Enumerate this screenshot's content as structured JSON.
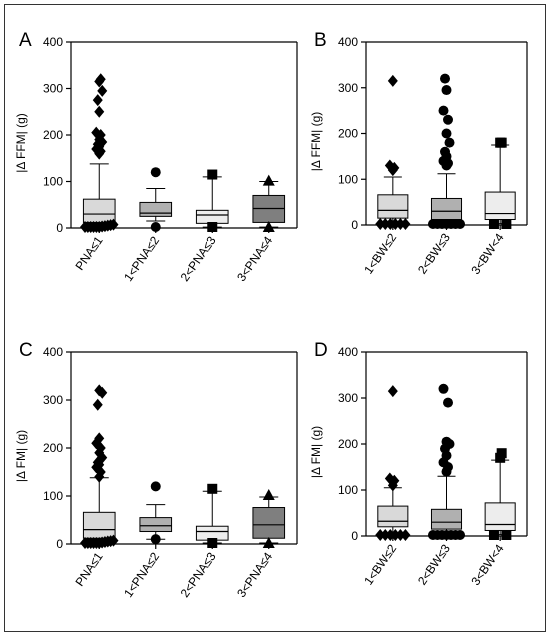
{
  "chart_data": [
    {
      "panel": "A",
      "type": "box",
      "ylabel": "|Δ FFM| (g)",
      "ylim": [
        0,
        400
      ],
      "yticks": [
        0,
        100,
        200,
        300,
        400
      ],
      "categories": [
        "PNA≤1",
        "1<PNA≤2",
        "2<PNA≤3",
        "3<PNA≤4"
      ],
      "boxes": [
        {
          "marker": "diamond",
          "fill": "#d9d9d9",
          "q1": 12,
          "median": 30,
          "q3": 62,
          "whisker_low": 2,
          "whisker_high": 138,
          "outliers": [
            0,
            0,
            0,
            0,
            0,
            0,
            1,
            2,
            3,
            4,
            5,
            160,
            165,
            170,
            175,
            180,
            185,
            190,
            200,
            205,
            250,
            275,
            295,
            315,
            320
          ]
        },
        {
          "marker": "circle",
          "fill": "#b0b0b0",
          "q1": 25,
          "median": 32,
          "q3": 55,
          "whisker_low": 15,
          "whisker_high": 85,
          "outliers": [
            0,
            120
          ]
        },
        {
          "marker": "square",
          "fill": "#ededed",
          "q1": 10,
          "median": 28,
          "q3": 38,
          "whisker_low": 2,
          "whisker_high": 110,
          "outliers": [
            0,
            115
          ]
        },
        {
          "marker": "triangle",
          "fill": "#7f7f7f",
          "q1": 12,
          "median": 42,
          "q3": 70,
          "whisker_low": 2,
          "whisker_high": 100,
          "outliers": [
            0,
            102
          ]
        }
      ]
    },
    {
      "panel": "B",
      "type": "box",
      "ylabel": "|Δ FFM| (g)",
      "ylim": [
        0,
        400
      ],
      "yticks": [
        0,
        100,
        200,
        300,
        400
      ],
      "categories": [
        "1<BW≤2",
        "2<BW≤3",
        "3<BW<4"
      ],
      "boxes": [
        {
          "marker": "diamond",
          "fill": "#d9d9d9",
          "q1": 15,
          "median": 32,
          "q3": 66,
          "whisker_low": 3,
          "whisker_high": 105,
          "outliers": [
            0,
            0,
            0,
            0,
            0,
            0,
            120,
            125,
            130,
            315
          ]
        },
        {
          "marker": "circle",
          "fill": "#b0b0b0",
          "q1": 12,
          "median": 30,
          "q3": 58,
          "whisker_low": 2,
          "whisker_high": 112,
          "outliers": [
            0,
            0,
            0,
            0,
            0,
            0,
            0,
            130,
            135,
            140,
            150,
            160,
            180,
            200,
            230,
            250,
            295,
            320
          ]
        },
        {
          "marker": "square",
          "fill": "#ededed",
          "q1": 12,
          "median": 25,
          "q3": 72,
          "whisker_low": 3,
          "whisker_high": 175,
          "outliers": [
            0,
            0,
            180,
            180
          ]
        }
      ]
    },
    {
      "panel": "C",
      "type": "box",
      "ylabel": "|Δ FM| (g)",
      "ylim": [
        0,
        400
      ],
      "yticks": [
        0,
        100,
        200,
        300,
        400
      ],
      "categories": [
        "PNA≤1",
        "1<PNA≤2",
        "2<PNA≤3",
        "3<PNA≤4"
      ],
      "boxes": [
        {
          "marker": "diamond",
          "fill": "#d9d9d9",
          "q1": 12,
          "median": 30,
          "q3": 66,
          "whisker_low": 2,
          "whisker_high": 138,
          "outliers": [
            0,
            0,
            0,
            0,
            0,
            0,
            1,
            2,
            3,
            4,
            5,
            140,
            150,
            160,
            165,
            170,
            180,
            190,
            200,
            210,
            220,
            290,
            315,
            320
          ]
        },
        {
          "marker": "circle",
          "fill": "#b0b0b0",
          "q1": 26,
          "median": 38,
          "q3": 55,
          "whisker_low": 10,
          "whisker_high": 82,
          "outliers": [
            8,
            120
          ]
        },
        {
          "marker": "square",
          "fill": "#ededed",
          "q1": 8,
          "median": 26,
          "q3": 37,
          "whisker_low": 2,
          "whisker_high": 110,
          "outliers": [
            0,
            115
          ]
        },
        {
          "marker": "triangle",
          "fill": "#7f7f7f",
          "q1": 12,
          "median": 40,
          "q3": 76,
          "whisker_low": 2,
          "whisker_high": 98,
          "outliers": [
            0,
            102
          ]
        }
      ]
    },
    {
      "panel": "D",
      "type": "box",
      "ylabel": "|Δ FM| (g)",
      "ylim": [
        0,
        400
      ],
      "yticks": [
        0,
        100,
        200,
        300,
        400
      ],
      "categories": [
        "1<BW≤2",
        "2<BW≤3",
        "3<BW<4"
      ],
      "boxes": [
        {
          "marker": "diamond",
          "fill": "#d9d9d9",
          "q1": 20,
          "median": 32,
          "q3": 65,
          "whisker_low": 5,
          "whisker_high": 105,
          "outliers": [
            0,
            0,
            0,
            0,
            0,
            0,
            110,
            120,
            125,
            315
          ]
        },
        {
          "marker": "circle",
          "fill": "#b0b0b0",
          "q1": 15,
          "median": 30,
          "q3": 58,
          "whisker_low": 2,
          "whisker_high": 130,
          "outliers": [
            0,
            0,
            0,
            0,
            0,
            0,
            0,
            140,
            150,
            160,
            175,
            190,
            200,
            205,
            290,
            320
          ]
        },
        {
          "marker": "square",
          "fill": "#ededed",
          "q1": 12,
          "median": 25,
          "q3": 72,
          "whisker_low": 3,
          "whisker_high": 165,
          "outliers": [
            0,
            0,
            170,
            180
          ]
        }
      ]
    }
  ]
}
